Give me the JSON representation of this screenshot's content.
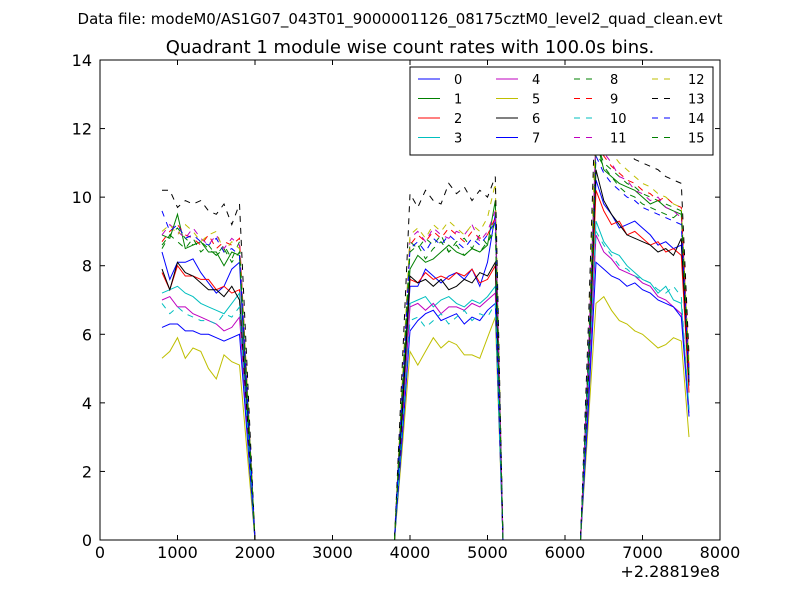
{
  "suptitle": "Data file: modeM0/AS1G07_043T01_9000001126_08175cztM0_level2_quad_clean.evt",
  "chart_data": {
    "type": "line",
    "title": "Quadrant 1 module wise count rates with 100.0s bins.",
    "xlabel": "",
    "ylabel": "",
    "xlim": [
      0,
      8000
    ],
    "ylim": [
      0,
      14
    ],
    "x_offset_label": "+2.28819e8",
    "xticks": [
      "0",
      "1000",
      "2000",
      "3000",
      "4000",
      "5000",
      "6000",
      "7000",
      "8000"
    ],
    "yticks": [
      "0",
      "2",
      "4",
      "6",
      "8",
      "10",
      "12",
      "14"
    ],
    "grid": false,
    "legend_position": "top-right",
    "legend_columns": 4,
    "x": [
      800,
      900,
      1000,
      1100,
      1200,
      1300,
      1400,
      1500,
      1600,
      1700,
      1800,
      1900,
      2000,
      2100,
      2200,
      2300,
      2400,
      2500,
      2600,
      2700,
      2800,
      2900,
      3000,
      3100,
      3200,
      3300,
      3400,
      3500,
      3600,
      3700,
      3800,
      3900,
      4000,
      4100,
      4200,
      4300,
      4400,
      4500,
      4600,
      4700,
      4800,
      4900,
      5000,
      5100,
      5200,
      5300,
      5400,
      5500,
      5600,
      5700,
      5800,
      5900,
      6000,
      6100,
      6200,
      6300,
      6400,
      6500,
      6600,
      6700,
      6800,
      6900,
      7000,
      7100,
      7200,
      7300,
      7400,
      7500,
      7600
    ],
    "series": [
      {
        "name": "0",
        "color": "#0000ff",
        "dash": "solid",
        "values": [
          8.4,
          7.6,
          8.1,
          8.1,
          8.2,
          7.8,
          7.5,
          7.2,
          7.4,
          7.9,
          8.1,
          3.8,
          0,
          0,
          0,
          0,
          0,
          0,
          0,
          0,
          0,
          0,
          0,
          0,
          0,
          0,
          0,
          0,
          0,
          0,
          0,
          3.9,
          7.4,
          7.4,
          7.9,
          7.7,
          7.5,
          7.7,
          7.8,
          7.6,
          7.9,
          7.4,
          8.1,
          9.5,
          0,
          0,
          0,
          0,
          0,
          0,
          0,
          0,
          0,
          0,
          0,
          4.8,
          10.5,
          9.8,
          9.5,
          9.1,
          9.2,
          9.3,
          9.1,
          8.9,
          8.6,
          8.7,
          8.5,
          8.6,
          4.5
        ]
      },
      {
        "name": "1",
        "color": "#008000",
        "dash": "solid",
        "values": [
          8.9,
          8.8,
          9.5,
          8.5,
          8.6,
          8.7,
          8.4,
          8.4,
          8.0,
          8.4,
          8.3,
          4.1,
          0,
          0,
          0,
          0,
          0,
          0,
          0,
          0,
          0,
          0,
          0,
          0,
          0,
          0,
          0,
          0,
          0,
          0,
          0,
          4.2,
          7.9,
          8.3,
          8.1,
          8.2,
          8.4,
          8.6,
          8.4,
          8.3,
          8.5,
          8.4,
          8.6,
          9.9,
          0,
          0,
          0,
          0,
          0,
          0,
          0,
          0,
          0,
          0,
          0,
          5.1,
          11.7,
          10.8,
          10.6,
          10.4,
          10.3,
          10.2,
          10.0,
          9.8,
          9.9,
          9.7,
          9.6,
          9.5,
          4.8
        ]
      },
      {
        "name": "2",
        "color": "#ff0000",
        "dash": "solid",
        "values": [
          7.8,
          7.3,
          8.0,
          7.7,
          7.7,
          7.6,
          7.6,
          7.3,
          7.4,
          7.2,
          7.3,
          3.6,
          0,
          0,
          0,
          0,
          0,
          0,
          0,
          0,
          0,
          0,
          0,
          0,
          0,
          0,
          0,
          0,
          0,
          0,
          0,
          3.7,
          7.6,
          7.5,
          7.8,
          7.6,
          7.7,
          7.6,
          7.8,
          7.7,
          7.9,
          7.5,
          7.6,
          8.0,
          0,
          0,
          0,
          0,
          0,
          0,
          0,
          0,
          0,
          0,
          0,
          4.6,
          10.2,
          9.6,
          9.2,
          9.3,
          8.9,
          9.0,
          8.8,
          8.6,
          8.7,
          8.4,
          8.5,
          8.3,
          4.3
        ]
      },
      {
        "name": "3",
        "color": "#00bfbf",
        "dash": "solid",
        "values": [
          7.2,
          7.3,
          7.4,
          7.2,
          7.1,
          6.9,
          6.8,
          6.7,
          6.6,
          6.9,
          7.2,
          3.5,
          0,
          0,
          0,
          0,
          0,
          0,
          0,
          0,
          0,
          0,
          0,
          0,
          0,
          0,
          0,
          0,
          0,
          0,
          0,
          3.4,
          6.9,
          7.0,
          7.1,
          6.8,
          7.0,
          7.1,
          6.9,
          6.8,
          7.0,
          6.9,
          7.1,
          7.4,
          0,
          0,
          0,
          0,
          0,
          0,
          0,
          0,
          0,
          0,
          0,
          4.2,
          9.3,
          8.7,
          8.4,
          8.3,
          8.0,
          7.8,
          7.6,
          7.5,
          7.2,
          7.4,
          7.0,
          6.9,
          3.8
        ]
      },
      {
        "name": "4",
        "color": "#bf00bf",
        "dash": "solid",
        "values": [
          7.0,
          7.1,
          6.8,
          6.8,
          6.6,
          6.5,
          6.4,
          6.3,
          6.1,
          6.2,
          6.5,
          3.3,
          0,
          0,
          0,
          0,
          0,
          0,
          0,
          0,
          0,
          0,
          0,
          0,
          0,
          0,
          0,
          0,
          0,
          0,
          0,
          3.3,
          6.8,
          6.9,
          6.7,
          6.9,
          6.6,
          6.8,
          6.8,
          6.7,
          6.9,
          6.8,
          7.0,
          7.2,
          0,
          0,
          0,
          0,
          0,
          0,
          0,
          0,
          0,
          0,
          0,
          4.1,
          8.9,
          8.4,
          8.2,
          7.9,
          7.8,
          7.7,
          7.5,
          7.4,
          7.1,
          7.0,
          6.8,
          6.6,
          3.7
        ]
      },
      {
        "name": "5",
        "color": "#bfbf00",
        "dash": "solid",
        "values": [
          5.3,
          5.5,
          5.9,
          5.3,
          5.6,
          5.5,
          5.0,
          4.7,
          5.4,
          5.2,
          5.1,
          2.5,
          0,
          0,
          0,
          0,
          0,
          0,
          0,
          0,
          0,
          0,
          0,
          0,
          0,
          0,
          0,
          0,
          0,
          0,
          0,
          2.7,
          5.5,
          5.1,
          5.5,
          5.9,
          5.6,
          5.8,
          5.7,
          5.4,
          5.4,
          5.3,
          5.9,
          6.5,
          0,
          0,
          0,
          0,
          0,
          0,
          0,
          0,
          0,
          0,
          0,
          3.4,
          6.9,
          7.1,
          6.7,
          6.4,
          6.3,
          6.1,
          6.0,
          5.8,
          5.6,
          5.7,
          5.9,
          5.8,
          3.0
        ]
      },
      {
        "name": "6",
        "color": "#000000",
        "dash": "solid",
        "values": [
          7.9,
          7.3,
          8.1,
          7.8,
          7.7,
          7.5,
          7.3,
          7.3,
          7.1,
          7.4,
          7.0,
          3.6,
          0,
          0,
          0,
          0,
          0,
          0,
          0,
          0,
          0,
          0,
          0,
          0,
          0,
          0,
          0,
          0,
          0,
          0,
          0,
          3.7,
          7.7,
          7.5,
          7.6,
          7.4,
          7.6,
          7.3,
          7.4,
          7.6,
          7.5,
          7.8,
          7.7,
          8.1,
          0,
          0,
          0,
          0,
          0,
          0,
          0,
          0,
          0,
          0,
          0,
          4.7,
          10.8,
          9.9,
          9.5,
          9.2,
          8.9,
          8.8,
          8.7,
          8.6,
          8.4,
          8.5,
          8.3,
          8.8,
          4.6
        ]
      },
      {
        "name": "7",
        "color": "#0000ff",
        "dash": "solid",
        "values": [
          6.2,
          6.3,
          6.3,
          6.1,
          6.1,
          6.0,
          6.0,
          5.9,
          5.8,
          5.9,
          6.0,
          3.0,
          0,
          0,
          0,
          0,
          0,
          0,
          0,
          0,
          0,
          0,
          0,
          0,
          0,
          0,
          0,
          0,
          0,
          0,
          0,
          3.0,
          6.1,
          6.4,
          6.6,
          6.7,
          6.4,
          6.5,
          6.6,
          6.3,
          6.5,
          6.4,
          6.7,
          6.9,
          0,
          0,
          0,
          0,
          0,
          0,
          0,
          0,
          0,
          0,
          0,
          3.8,
          8.1,
          7.9,
          7.7,
          7.6,
          7.4,
          7.5,
          7.3,
          7.2,
          7.0,
          6.9,
          6.8,
          6.5,
          3.6
        ]
      },
      {
        "name": "8",
        "color": "#008000",
        "dash": "dashed",
        "values": [
          8.5,
          8.9,
          9.1,
          8.8,
          8.6,
          8.7,
          8.5,
          8.3,
          8.6,
          8.2,
          8.7,
          4.3,
          0,
          0,
          0,
          0,
          0,
          0,
          0,
          0,
          0,
          0,
          0,
          0,
          0,
          0,
          0,
          0,
          0,
          0,
          0,
          4.4,
          8.7,
          8.5,
          8.8,
          8.6,
          8.9,
          8.4,
          8.7,
          8.8,
          8.5,
          8.9,
          8.6,
          9.3,
          0,
          0,
          0,
          0,
          0,
          0,
          0,
          0,
          0,
          0,
          0,
          5.2,
          11.6,
          11.0,
          10.8,
          10.6,
          10.4,
          10.3,
          10.1,
          10.0,
          9.9,
          9.8,
          9.7,
          9.6,
          5.0
        ]
      },
      {
        "name": "9",
        "color": "#ff0000",
        "dash": "dashed",
        "values": [
          8.7,
          9.0,
          9.2,
          8.9,
          8.8,
          8.6,
          8.9,
          8.5,
          8.7,
          8.6,
          8.8,
          4.4,
          0,
          0,
          0,
          0,
          0,
          0,
          0,
          0,
          0,
          0,
          0,
          0,
          0,
          0,
          0,
          0,
          0,
          0,
          0,
          4.5,
          8.6,
          8.9,
          8.7,
          9.0,
          8.8,
          9.1,
          8.9,
          8.7,
          9.0,
          8.8,
          8.9,
          9.4,
          0,
          0,
          0,
          0,
          0,
          0,
          0,
          0,
          0,
          0,
          0,
          5.3,
          11.9,
          11.2,
          10.9,
          10.7,
          10.5,
          10.4,
          10.2,
          10.1,
          9.9,
          10.0,
          9.8,
          9.7,
          5.0
        ]
      },
      {
        "name": "10",
        "color": "#00bfbf",
        "dash": "dashed",
        "values": [
          6.9,
          6.6,
          6.8,
          6.6,
          6.5,
          6.4,
          6.4,
          6.3,
          6.6,
          6.5,
          6.8,
          3.4,
          0,
          0,
          0,
          0,
          0,
          0,
          0,
          0,
          0,
          0,
          0,
          0,
          0,
          0,
          0,
          0,
          0,
          0,
          0,
          3.3,
          6.4,
          6.5,
          6.2,
          6.4,
          6.6,
          6.3,
          6.5,
          6.7,
          6.4,
          6.6,
          6.5,
          6.9,
          0,
          0,
          0,
          0,
          0,
          0,
          0,
          0,
          0,
          0,
          0,
          4.5,
          9.0,
          8.6,
          8.3,
          8.0,
          7.9,
          7.7,
          7.6,
          7.5,
          7.3,
          7.2,
          7.4,
          7.1,
          3.8
        ]
      },
      {
        "name": "11",
        "color": "#bf00bf",
        "dash": "dashed",
        "values": [
          8.9,
          9.2,
          9.0,
          8.8,
          9.1,
          8.8,
          8.6,
          8.9,
          8.5,
          8.8,
          8.6,
          4.4,
          0,
          0,
          0,
          0,
          0,
          0,
          0,
          0,
          0,
          0,
          0,
          0,
          0,
          0,
          0,
          0,
          0,
          0,
          0,
          4.5,
          8.8,
          9.0,
          8.7,
          9.1,
          8.9,
          8.8,
          9.0,
          8.9,
          9.2,
          8.7,
          9.0,
          9.6,
          0,
          0,
          0,
          0,
          0,
          0,
          0,
          0,
          0,
          0,
          0,
          5.3,
          11.8,
          11.3,
          11.0,
          10.6,
          10.5,
          10.2,
          10.1,
          9.9,
          10.0,
          9.7,
          9.6,
          9.4,
          5.0
        ]
      },
      {
        "name": "12",
        "color": "#bfbf00",
        "dash": "dashed",
        "values": [
          9.0,
          9.2,
          8.9,
          9.2,
          9.0,
          8.7,
          8.9,
          9.0,
          8.4,
          8.7,
          8.5,
          4.4,
          0,
          0,
          0,
          0,
          0,
          0,
          0,
          0,
          0,
          0,
          0,
          0,
          0,
          0,
          0,
          0,
          0,
          0,
          0,
          4.6,
          8.9,
          9.1,
          8.8,
          9.2,
          9.0,
          9.3,
          9.1,
          8.9,
          9.2,
          9.0,
          9.4,
          10.4,
          0,
          0,
          0,
          0,
          0,
          0,
          0,
          0,
          0,
          0,
          0,
          5.6,
          12.3,
          11.6,
          11.3,
          11.0,
          10.8,
          10.6,
          10.4,
          10.3,
          10.1,
          10.0,
          9.8,
          9.7,
          5.2
        ]
      },
      {
        "name": "13",
        "color": "#000000",
        "dash": "dashed",
        "values": [
          10.2,
          10.2,
          9.7,
          9.9,
          9.8,
          9.9,
          9.6,
          9.5,
          9.8,
          9.2,
          9.8,
          4.9,
          0,
          0,
          0,
          0,
          0,
          0,
          0,
          0,
          0,
          0,
          0,
          0,
          0,
          0,
          0,
          0,
          0,
          0,
          0,
          5.1,
          10.1,
          9.7,
          10.2,
          9.9,
          9.8,
          10.4,
          10.1,
          10.3,
          9.9,
          10.2,
          10.0,
          10.6,
          0,
          0,
          0,
          0,
          0,
          0,
          0,
          0,
          0,
          0,
          0,
          6.2,
          13.3,
          12.3,
          11.8,
          11.5,
          11.3,
          11.1,
          11.0,
          10.9,
          10.8,
          10.6,
          10.5,
          10.4,
          5.4
        ]
      },
      {
        "name": "14",
        "color": "#0000ff",
        "dash": "dashed",
        "values": [
          9.6,
          9.0,
          9.2,
          8.8,
          8.9,
          8.7,
          8.6,
          8.8,
          8.4,
          8.5,
          8.3,
          4.2,
          0,
          0,
          0,
          0,
          0,
          0,
          0,
          0,
          0,
          0,
          0,
          0,
          0,
          0,
          0,
          0,
          0,
          0,
          0,
          4.3,
          8.5,
          8.7,
          8.4,
          8.8,
          8.6,
          8.9,
          8.7,
          8.5,
          8.8,
          8.6,
          8.9,
          9.3,
          0,
          0,
          0,
          0,
          0,
          0,
          0,
          0,
          0,
          0,
          0,
          5.4,
          11.2,
          10.7,
          10.4,
          10.2,
          10.0,
          9.9,
          9.7,
          9.6,
          9.5,
          9.4,
          9.3,
          9.2,
          4.7
        ]
      },
      {
        "name": "15",
        "color": "#008000",
        "dash": "dashed",
        "values": [
          8.6,
          8.9,
          8.7,
          8.5,
          8.8,
          8.4,
          8.6,
          8.3,
          8.5,
          8.1,
          8.4,
          4.2,
          0,
          0,
          0,
          0,
          0,
          0,
          0,
          0,
          0,
          0,
          0,
          0,
          0,
          0,
          0,
          0,
          0,
          0,
          0,
          4.3,
          8.4,
          8.6,
          8.2,
          8.5,
          8.7,
          8.4,
          8.6,
          8.3,
          8.5,
          8.4,
          8.7,
          9.0,
          0,
          0,
          0,
          0,
          0,
          0,
          0,
          0,
          0,
          0,
          0,
          5.2,
          11.3,
          10.9,
          10.6,
          10.3,
          10.1,
          10.0,
          9.8,
          9.7,
          9.6,
          9.5,
          9.4,
          9.6,
          4.8
        ]
      }
    ]
  }
}
